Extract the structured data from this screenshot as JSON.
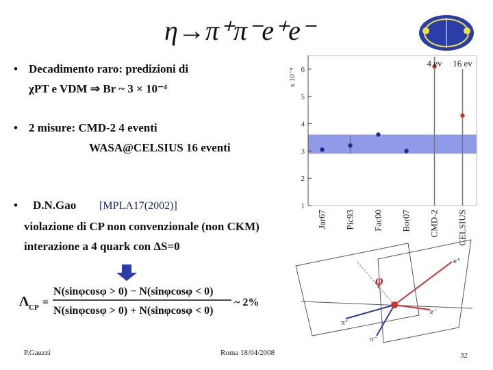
{
  "header": {
    "title": "η→π⁺π⁻e⁺e⁻"
  },
  "bullets": [
    {
      "lines": [
        "Decadimento raro:  predizioni di",
        "χPT e VDM ⇒ Br ~ 3 × 10⁻⁴"
      ]
    },
    {
      "lines": [
        "2 misure: CMD-2  4 eventi",
        "WASA@CELSIUS  16 eventi"
      ]
    },
    {
      "lines": [
        "D.N.Gao",
        "violazione di CP non convenzionale (non CKM)",
        "interazione a 4 quark con  ΔS=0"
      ],
      "reference": "[MPLA17(2002)]"
    }
  ],
  "formula": {
    "symbol": "Λ",
    "subscript": "CP",
    "numerator": "N(sinφcosφ > 0) − N(sinφcosφ < 0)",
    "denominator": "N(sinφcosφ > 0) + N(sinφcosφ < 0)",
    "result": "~ 2%"
  },
  "chart_data": {
    "type": "scatter",
    "y_unit_label": "x 10⁻⁴",
    "categories": [
      "Jar67",
      "Pic93",
      "Fac00",
      "Bor07",
      "CMD-2",
      "CELSIUS"
    ],
    "values": [
      3.05,
      3.2,
      3.6,
      3.0,
      6.1,
      4.3
    ],
    "err_low": [
      0,
      0.3,
      0,
      0.1,
      5.1,
      3.3
    ],
    "err_high": [
      0,
      0.35,
      0,
      0.1,
      0.35,
      1.7
    ],
    "point_colors": [
      "#1a2f8a",
      "#1a2f8a",
      "#1a2f8a",
      "#1a2f8a",
      "#c0392b",
      "#c0392b"
    ],
    "error_color": "#777777",
    "band": [
      2.9,
      3.6
    ],
    "band_color": "#8f9be8",
    "ylim": [
      1,
      6.5
    ],
    "yticks": [
      1,
      2,
      3,
      4,
      5,
      6
    ],
    "annotations": [
      {
        "text": "4 ev",
        "at": "CMD-2"
      },
      {
        "text": "16 ev",
        "at": "CELSIUS"
      }
    ]
  },
  "diagram": {
    "angle": "φ",
    "labels": [
      "e⁺",
      "e⁻",
      "π⁺",
      "π⁻"
    ]
  },
  "footer": {
    "author": "P.Gauzzi",
    "place_date": "Roma 18/04/2008",
    "page": "32"
  }
}
